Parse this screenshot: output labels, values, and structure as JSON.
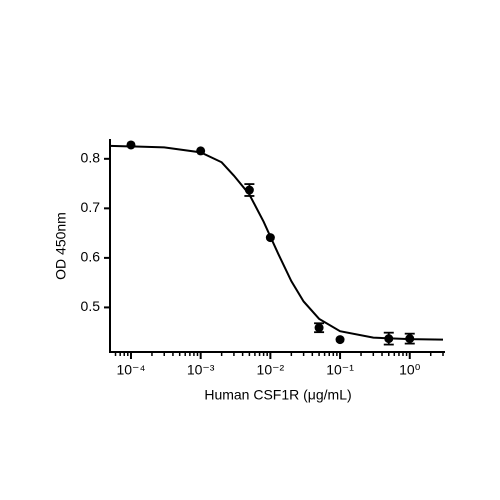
{
  "chart_data": {
    "type": "scatter",
    "x_label": "Human CSF1R (μg/mL)",
    "y_label": "OD 450nm",
    "x_scale": "log",
    "xlim": [
      5e-05,
      3
    ],
    "ylim": [
      0.41,
      0.84
    ],
    "xticks": [
      {
        "value": 0.0001,
        "label": "10⁻⁴"
      },
      {
        "value": 0.001,
        "label": "10⁻³"
      },
      {
        "value": 0.01,
        "label": "10⁻²"
      },
      {
        "value": 0.1,
        "label": "10⁻¹"
      },
      {
        "value": 1,
        "label": "10⁰"
      }
    ],
    "xminorticks": [
      6e-05,
      7e-05,
      8e-05,
      9e-05,
      0.0002,
      0.0003,
      0.0004,
      0.0005,
      0.0006,
      0.0007,
      0.0008,
      0.0009,
      0.002,
      0.003,
      0.004,
      0.005,
      0.006,
      0.007,
      0.008,
      0.009,
      0.02,
      0.03,
      0.04,
      0.05,
      0.06,
      0.07,
      0.08,
      0.09,
      0.2,
      0.3,
      0.4,
      0.5,
      0.6,
      0.7,
      0.8,
      0.9,
      2,
      3
    ],
    "yticks": [
      0.5,
      0.6,
      0.7,
      0.8
    ],
    "color": "#000000",
    "points": {
      "x": [
        0.0001,
        0.001,
        0.005,
        0.01,
        0.05,
        0.1,
        0.5,
        1
      ],
      "values": [
        0.828,
        0.816,
        0.737,
        0.641,
        0.459,
        0.435,
        0.437,
        0.437
      ],
      "errors": [
        null,
        null,
        0.012,
        null,
        0.009,
        null,
        0.012,
        0.01
      ]
    },
    "fit_curve": {
      "x": [
        5e-05,
        0.0001,
        0.0003,
        0.001,
        0.002,
        0.003,
        0.005,
        0.008,
        0.01,
        0.013,
        0.02,
        0.03,
        0.05,
        0.1,
        0.3,
        1,
        3
      ],
      "values": [
        0.826,
        0.825,
        0.823,
        0.813,
        0.793,
        0.766,
        0.728,
        0.673,
        0.643,
        0.608,
        0.553,
        0.512,
        0.477,
        0.452,
        0.439,
        0.436,
        0.435
      ]
    }
  }
}
